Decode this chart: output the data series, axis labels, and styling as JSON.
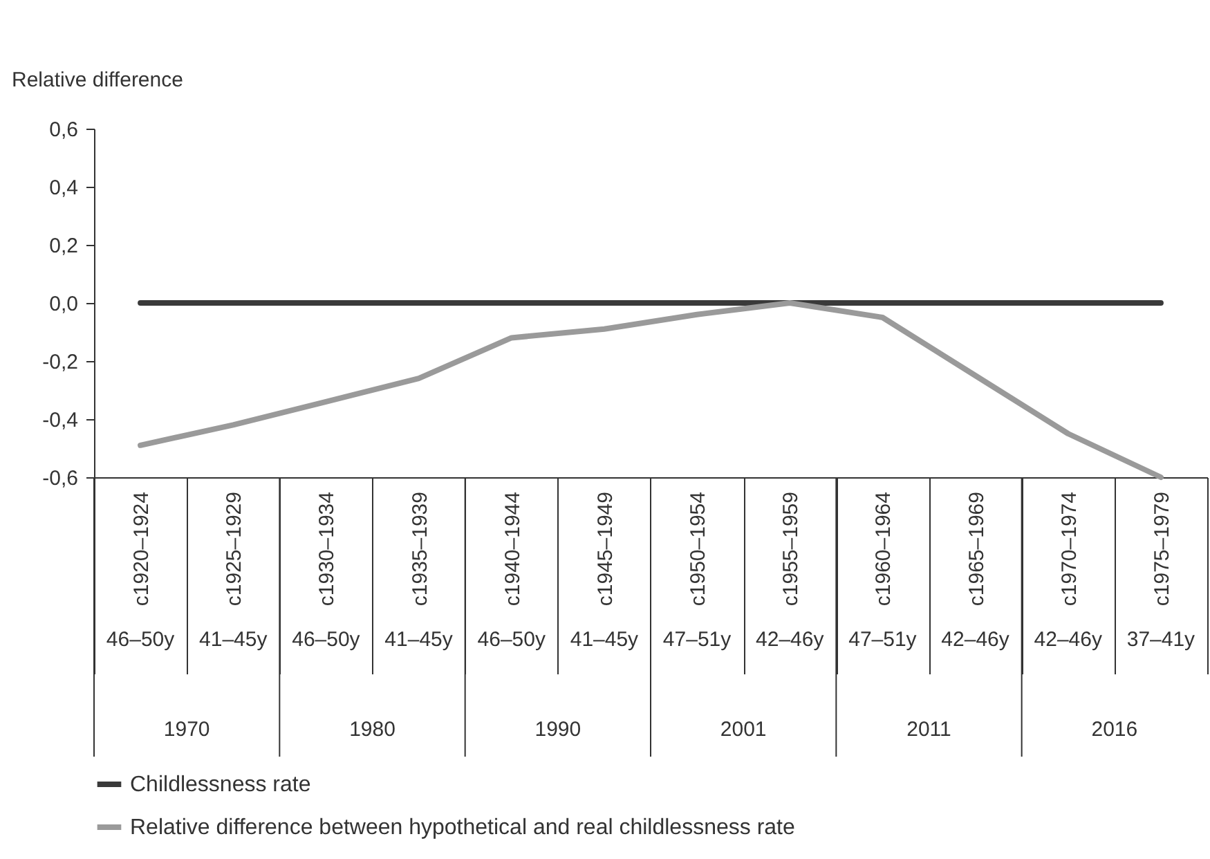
{
  "chart_data": {
    "type": "line",
    "ylabel": "Relative difference",
    "categories": [
      "c1920–1924",
      "c1925–1929",
      "c1930–1934",
      "c1935–1939",
      "c1940–1944",
      "c1945–1949",
      "c1950–1954",
      "c1955–1959",
      "c1960–1964",
      "c1965–1969",
      "c1970–1974",
      "c1975–1979"
    ],
    "series": [
      {
        "name": "Childlessness rate",
        "color": "#3a3a3a",
        "values": [
          0,
          0,
          0,
          0,
          0,
          0,
          0,
          0,
          0,
          0,
          0,
          0
        ]
      },
      {
        "name": "Relative difference between hypothetical and real childlessness rate",
        "color": "#9a9a9a",
        "values": [
          -0.49,
          -0.42,
          -0.34,
          -0.26,
          -0.12,
          -0.09,
          -0.04,
          0,
          -0.05,
          -0.25,
          -0.45,
          -0.6
        ]
      }
    ],
    "annotations": [
      "46–50y",
      "41–45y",
      "46–50y",
      "41–45y",
      "46–50y",
      "41–45y",
      "47–51y",
      "42–46y",
      "47–51y",
      "42–46y",
      "42–46y",
      "37–41y",
      "1970",
      "1980",
      "1990",
      "2001",
      "2011",
      "2016"
    ],
    "ylim": [
      -0.6,
      0.6
    ],
    "yticks": [
      {
        "value": 0.6,
        "label": "0,6"
      },
      {
        "value": 0.4,
        "label": "0,4"
      },
      {
        "value": 0.2,
        "label": "0,2"
      },
      {
        "value": 0,
        "label": "0,0"
      },
      {
        "value": -0.2,
        "label": "-0,2"
      },
      {
        "value": -0.4,
        "label": "-0,4"
      },
      {
        "value": -0.6,
        "label": "-0,6"
      }
    ],
    "grid": false,
    "legend": "bottom",
    "marker": "none",
    "line_style": "solid"
  }
}
